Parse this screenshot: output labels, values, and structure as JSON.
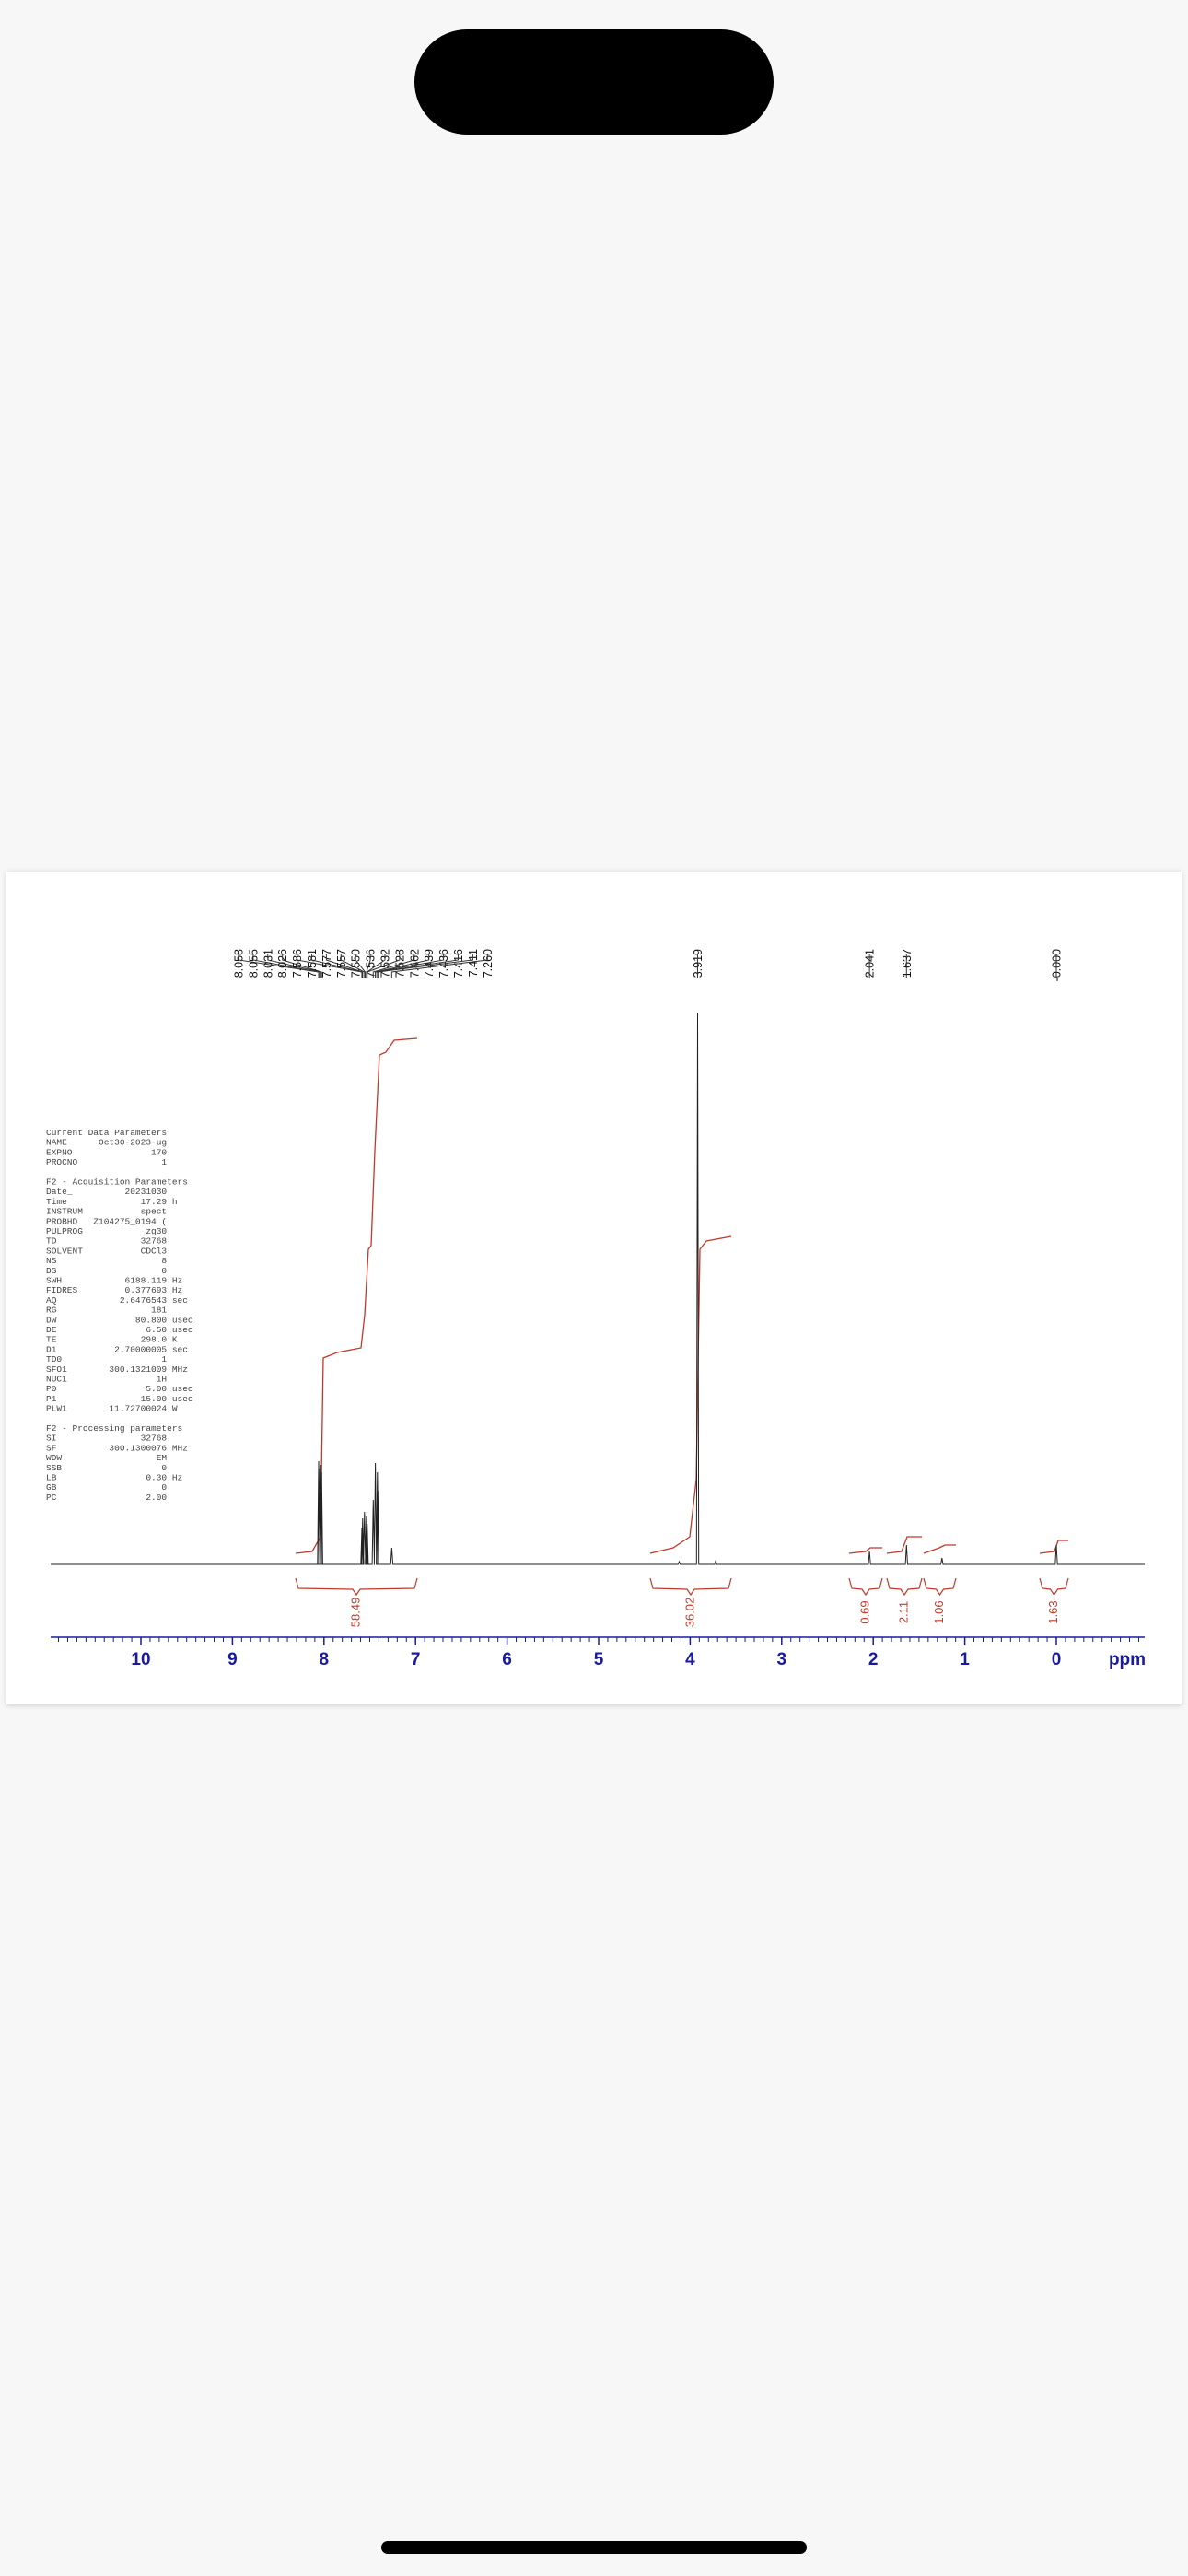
{
  "screen": {
    "spectrum": {
      "peak_labels": [
        "8.058",
        "8.055",
        "8.031",
        "8.026",
        "7.586",
        "7.581",
        "7.577",
        "7.557",
        "7.550",
        "7.536",
        "7.532",
        "7.528",
        "7.462",
        "7.439",
        "7.436",
        "7.416",
        "7.411",
        "7.260",
        "3.919",
        "2.041",
        "1.637",
        "-0.000"
      ],
      "integrals": [
        "58.49",
        "36.02",
        "0.69",
        "2.11",
        "1.06",
        "1.63"
      ],
      "axis_ticks": [
        10,
        9,
        8,
        7,
        6,
        5,
        4,
        3,
        2,
        1,
        0
      ],
      "axis_unit": "ppm",
      "parameters": [
        {
          "header": "Current Data Parameters",
          "lines": [
            "NAME      Oct30-2023-ug",
            "EXPNO               170",
            "PROCNO                1"
          ]
        },
        {
          "header": "F2 - Acquisition Parameters",
          "lines": [
            "Date_          20231030",
            "Time              17.29 h",
            "INSTRUM           spect",
            "PROBHD   Z104275_0194 (",
            "PULPROG            zg30",
            "TD                32768",
            "SOLVENT           CDCl3",
            "NS                    8",
            "DS                    0",
            "SWH            6188.119 Hz",
            "FIDRES         0.377693 Hz",
            "AQ            2.6476543 sec",
            "RG                  181",
            "DW               80.800 usec",
            "DE                 6.50 usec",
            "TE                298.0 K",
            "D1           2.70000005 sec",
            "TD0                   1",
            "SFO1        300.1321009 MHz",
            "NUC1                 1H",
            "P0                 5.00 usec",
            "P1                15.00 usec",
            "PLW1        11.72700024 W"
          ]
        },
        {
          "header": "F2 - Processing parameters",
          "lines": [
            "SI                32768",
            "SF          300.1300076 MHz",
            "WDW                  EM",
            "SSB                   0",
            "LB                 0.30 Hz",
            "GB                    0",
            "PC                 2.00"
          ]
        }
      ]
    }
  }
}
